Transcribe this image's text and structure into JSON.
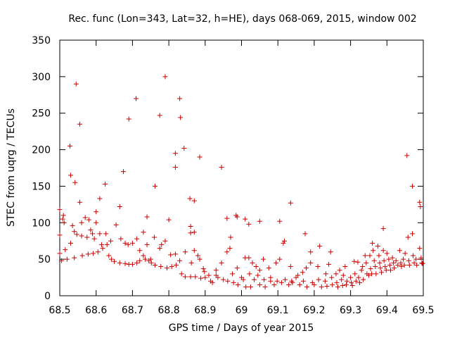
{
  "chart_data": {
    "type": "scatter",
    "title": "Rec. func (Lon=343, Lat=32, h=HE), days 068-069, 2015, window 002",
    "xlabel": "GPS time / Days of year 2015",
    "ylabel": "STEC from uqrg / TECUs",
    "xlim": [
      68.5,
      69.5
    ],
    "ylim": [
      0,
      350
    ],
    "grid": false,
    "legend": "none",
    "marker": "plus",
    "x_ticks": [
      "68.5",
      "68.6",
      "68.7",
      "68.8",
      "68.9",
      "69",
      "69.1",
      "69.2",
      "69.3",
      "69.4",
      "69.5"
    ],
    "y_ticks": [
      "0",
      "50",
      "100",
      "150",
      "200",
      "250",
      "300",
      "350"
    ],
    "color": "#cc0000",
    "points": [
      [
        68.5,
        118
      ],
      [
        68.5,
        83
      ],
      [
        68.5,
        58
      ],
      [
        68.508,
        105
      ],
      [
        68.51,
        110
      ],
      [
        68.512,
        100
      ],
      [
        68.505,
        48
      ],
      [
        68.515,
        63
      ],
      [
        68.52,
        50
      ],
      [
        68.528,
        205
      ],
      [
        68.53,
        165
      ],
      [
        68.53,
        72
      ],
      [
        68.535,
        96
      ],
      [
        68.54,
        88
      ],
      [
        68.542,
        155
      ],
      [
        68.545,
        290
      ],
      [
        68.547,
        84
      ],
      [
        68.54,
        52
      ],
      [
        68.555,
        235
      ],
      [
        68.555,
        128
      ],
      [
        68.56,
        100
      ],
      [
        68.56,
        82
      ],
      [
        68.562,
        55
      ],
      [
        68.57,
        107
      ],
      [
        68.575,
        80
      ],
      [
        68.578,
        57
      ],
      [
        68.58,
        104
      ],
      [
        68.585,
        90
      ],
      [
        68.59,
        85
      ],
      [
        68.592,
        58
      ],
      [
        68.595,
        78
      ],
      [
        68.6,
        115
      ],
      [
        68.6,
        100
      ],
      [
        68.605,
        60
      ],
      [
        68.61,
        133
      ],
      [
        68.61,
        85
      ],
      [
        68.615,
        70
      ],
      [
        68.618,
        65
      ],
      [
        68.625,
        153
      ],
      [
        68.627,
        85
      ],
      [
        68.63,
        70
      ],
      [
        68.635,
        55
      ],
      [
        68.64,
        75
      ],
      [
        68.642,
        50
      ],
      [
        68.655,
        97
      ],
      [
        68.65,
        47
      ],
      [
        68.665,
        122
      ],
      [
        68.668,
        78
      ],
      [
        68.665,
        45
      ],
      [
        68.675,
        170
      ],
      [
        68.68,
        72
      ],
      [
        68.68,
        44
      ],
      [
        68.69,
        242
      ],
      [
        68.688,
        70
      ],
      [
        68.69,
        43
      ],
      [
        68.7,
        72
      ],
      [
        68.7,
        43
      ],
      [
        68.71,
        270
      ],
      [
        68.712,
        78
      ],
      [
        68.712,
        45
      ],
      [
        68.72,
        62
      ],
      [
        68.72,
        48
      ],
      [
        68.73,
        87
      ],
      [
        68.73,
        55
      ],
      [
        68.735,
        50
      ],
      [
        68.74,
        108
      ],
      [
        68.74,
        70
      ],
      [
        68.745,
        48
      ],
      [
        68.75,
        50
      ],
      [
        68.752,
        45
      ],
      [
        68.762,
        150
      ],
      [
        68.76,
        80
      ],
      [
        68.762,
        42
      ],
      [
        68.775,
        247
      ],
      [
        68.775,
        65
      ],
      [
        68.778,
        40
      ],
      [
        68.78,
        70
      ],
      [
        68.79,
        300
      ],
      [
        68.79,
        75
      ],
      [
        68.795,
        38
      ],
      [
        68.8,
        104
      ],
      [
        68.805,
        56
      ],
      [
        68.808,
        40
      ],
      [
        68.818,
        195
      ],
      [
        68.818,
        176
      ],
      [
        68.818,
        57
      ],
      [
        68.82,
        42
      ],
      [
        68.83,
        270
      ],
      [
        68.832,
        244
      ],
      [
        68.83,
        48
      ],
      [
        68.835,
        30
      ],
      [
        68.842,
        202
      ],
      [
        68.845,
        60
      ],
      [
        68.845,
        26
      ],
      [
        68.858,
        133
      ],
      [
        68.86,
        95
      ],
      [
        68.86,
        86
      ],
      [
        68.862,
        45
      ],
      [
        68.86,
        26
      ],
      [
        68.87,
        130
      ],
      [
        68.87,
        87
      ],
      [
        68.87,
        62
      ],
      [
        68.873,
        26
      ],
      [
        68.885,
        190
      ],
      [
        68.88,
        55
      ],
      [
        68.885,
        50
      ],
      [
        68.888,
        24
      ],
      [
        68.895,
        37
      ],
      [
        68.898,
        33
      ],
      [
        68.9,
        25
      ],
      [
        68.91,
        28
      ],
      [
        68.915,
        20
      ],
      [
        68.92,
        18
      ],
      [
        68.93,
        35
      ],
      [
        68.93,
        28
      ],
      [
        68.935,
        25
      ],
      [
        68.945,
        176
      ],
      [
        68.945,
        45
      ],
      [
        68.95,
        22
      ],
      [
        68.96,
        106
      ],
      [
        68.96,
        60
      ],
      [
        68.962,
        20
      ],
      [
        68.968,
        65
      ],
      [
        68.97,
        80
      ],
      [
        68.975,
        30
      ],
      [
        68.978,
        18
      ],
      [
        68.985,
        110
      ],
      [
        68.988,
        108
      ],
      [
        68.988,
        38
      ],
      [
        68.99,
        15
      ],
      [
        69.0,
        25
      ],
      [
        69.005,
        22
      ],
      [
        69.01,
        105
      ],
      [
        69.01,
        52
      ],
      [
        69.012,
        12
      ],
      [
        69.02,
        52
      ],
      [
        69.02,
        98
      ],
      [
        69.022,
        30
      ],
      [
        69.025,
        12
      ],
      [
        69.03,
        45
      ],
      [
        69.035,
        22
      ],
      [
        69.04,
        40
      ],
      [
        69.045,
        28
      ],
      [
        69.05,
        102
      ],
      [
        69.05,
        35
      ],
      [
        69.05,
        15
      ],
      [
        69.06,
        50
      ],
      [
        69.062,
        22
      ],
      [
        69.065,
        12
      ],
      [
        69.075,
        38
      ],
      [
        69.08,
        25
      ],
      [
        69.08,
        20
      ],
      [
        69.09,
        15
      ],
      [
        69.095,
        45
      ],
      [
        69.098,
        20
      ],
      [
        69.105,
        102
      ],
      [
        69.105,
        50
      ],
      [
        69.11,
        18
      ],
      [
        69.115,
        72
      ],
      [
        69.118,
        75
      ],
      [
        69.12,
        22
      ],
      [
        69.13,
        15
      ],
      [
        69.135,
        127
      ],
      [
        69.135,
        40
      ],
      [
        69.138,
        20
      ],
      [
        69.14,
        18
      ],
      [
        69.15,
        25
      ],
      [
        69.155,
        28
      ],
      [
        69.16,
        15
      ],
      [
        69.168,
        32
      ],
      [
        69.17,
        20
      ],
      [
        69.175,
        85
      ],
      [
        69.178,
        38
      ],
      [
        69.18,
        12
      ],
      [
        69.19,
        60
      ],
      [
        69.19,
        45
      ],
      [
        69.195,
        18
      ],
      [
        69.2,
        15
      ],
      [
        69.21,
        40
      ],
      [
        69.212,
        22
      ],
      [
        69.215,
        68
      ],
      [
        69.22,
        12
      ],
      [
        69.23,
        20
      ],
      [
        69.232,
        30
      ],
      [
        69.235,
        13
      ],
      [
        69.24,
        43
      ],
      [
        69.245,
        60
      ],
      [
        69.248,
        25
      ],
      [
        69.25,
        15
      ],
      [
        69.26,
        30
      ],
      [
        69.262,
        18
      ],
      [
        69.265,
        12
      ],
      [
        69.27,
        35
      ],
      [
        69.275,
        22
      ],
      [
        69.278,
        14
      ],
      [
        69.28,
        28
      ],
      [
        69.285,
        40
      ],
      [
        69.288,
        15
      ],
      [
        69.29,
        20
      ],
      [
        69.3,
        25
      ],
      [
        69.302,
        18
      ],
      [
        69.305,
        14
      ],
      [
        69.31,
        47
      ],
      [
        69.312,
        30
      ],
      [
        69.315,
        20
      ],
      [
        69.32,
        46
      ],
      [
        69.322,
        25
      ],
      [
        69.325,
        18
      ],
      [
        69.33,
        35
      ],
      [
        69.333,
        40
      ],
      [
        69.335,
        22
      ],
      [
        69.34,
        55
      ],
      [
        69.343,
        45
      ],
      [
        69.345,
        30
      ],
      [
        69.35,
        28
      ],
      [
        69.353,
        55
      ],
      [
        69.355,
        37
      ],
      [
        69.358,
        30
      ],
      [
        69.36,
        72
      ],
      [
        69.362,
        62
      ],
      [
        69.365,
        48
      ],
      [
        69.368,
        40
      ],
      [
        69.37,
        30
      ],
      [
        69.375,
        68
      ],
      [
        69.378,
        55
      ],
      [
        69.38,
        45
      ],
      [
        69.382,
        38
      ],
      [
        69.385,
        32
      ],
      [
        69.39,
        92
      ],
      [
        69.39,
        62
      ],
      [
        69.392,
        48
      ],
      [
        69.395,
        40
      ],
      [
        69.398,
        35
      ],
      [
        69.4,
        58
      ],
      [
        69.405,
        50
      ],
      [
        69.408,
        42
      ],
      [
        69.41,
        35
      ],
      [
        69.415,
        52
      ],
      [
        69.418,
        45
      ],
      [
        69.42,
        38
      ],
      [
        69.425,
        48
      ],
      [
        69.43,
        42
      ],
      [
        69.435,
        62
      ],
      [
        69.438,
        45
      ],
      [
        69.44,
        40
      ],
      [
        69.445,
        50
      ],
      [
        69.448,
        42
      ],
      [
        69.45,
        58
      ],
      [
        69.455,
        192
      ],
      [
        69.458,
        80
      ],
      [
        69.46,
        48
      ],
      [
        69.462,
        42
      ],
      [
        69.47,
        150
      ],
      [
        69.47,
        85
      ],
      [
        69.472,
        55
      ],
      [
        69.475,
        45
      ],
      [
        69.48,
        50
      ],
      [
        69.482,
        42
      ],
      [
        69.49,
        128
      ],
      [
        69.492,
        122
      ],
      [
        69.49,
        65
      ],
      [
        69.494,
        52
      ],
      [
        69.496,
        45
      ],
      [
        69.498,
        44
      ]
    ]
  }
}
